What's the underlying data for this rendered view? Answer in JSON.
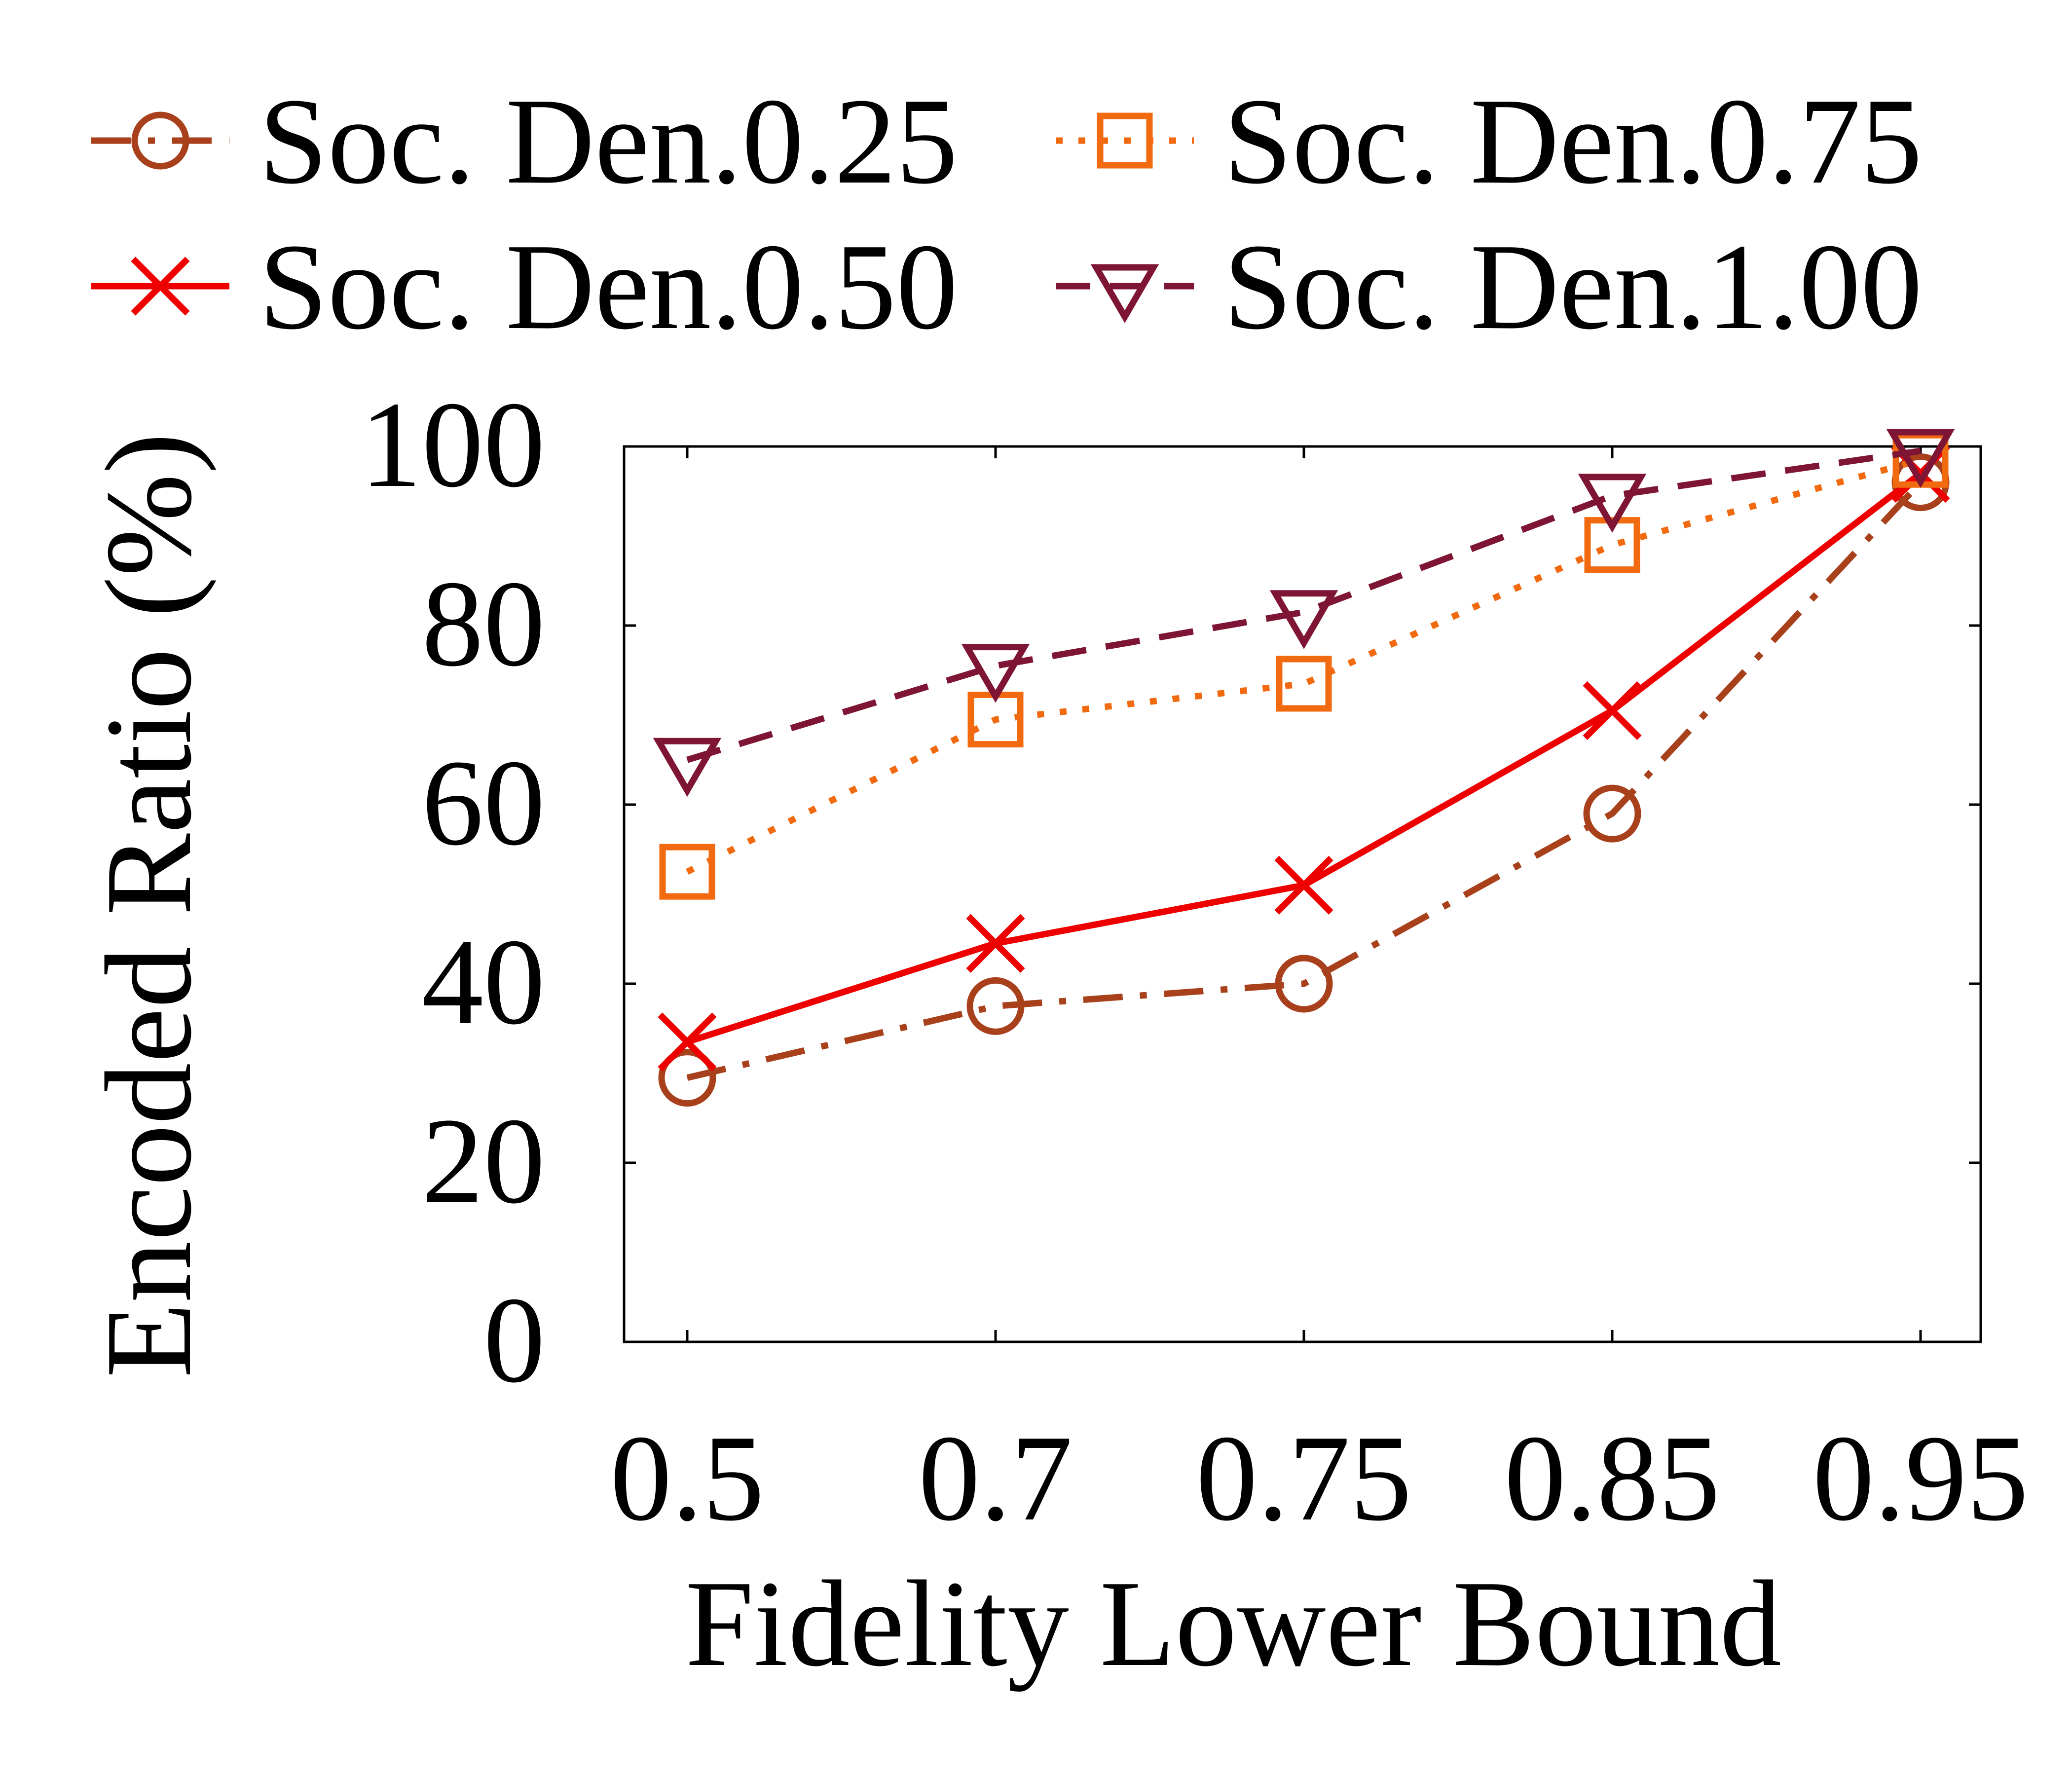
{
  "chart_data": {
    "type": "line",
    "title": "",
    "xlabel": "Fidelity Lower Bound",
    "ylabel": "Encoded Ratio (%)",
    "categories": [
      "0.5",
      "0.7",
      "0.75",
      "0.85",
      "0.95"
    ],
    "ylim": [
      0,
      100
    ],
    "yticks": [
      "0",
      "20",
      "40",
      "60",
      "80",
      "100"
    ],
    "grid": false,
    "legend_position": "top",
    "series": [
      {
        "name": "Soc. Den.0.25",
        "values": [
          29.5,
          37.5,
          40,
          59,
          96
        ],
        "color": "#a8401c",
        "marker": "circle",
        "dash": "dashdot"
      },
      {
        "name": "Soc. Den.0.50",
        "values": [
          33.5,
          44.5,
          51,
          70.5,
          97
        ],
        "color": "#ee0000",
        "marker": "x",
        "dash": "solid"
      },
      {
        "name": "Soc. Den.0.75",
        "values": [
          52.5,
          69.5,
          73.5,
          89,
          98.5
        ],
        "color": "#f26a10",
        "marker": "square",
        "dash": "dotted"
      },
      {
        "name": "Soc. Den.1.00",
        "values": [
          65,
          75.5,
          81.5,
          94.5,
          99.5
        ],
        "color": "#7f1535",
        "marker": "triangle-down",
        "dash": "dashed"
      }
    ]
  }
}
